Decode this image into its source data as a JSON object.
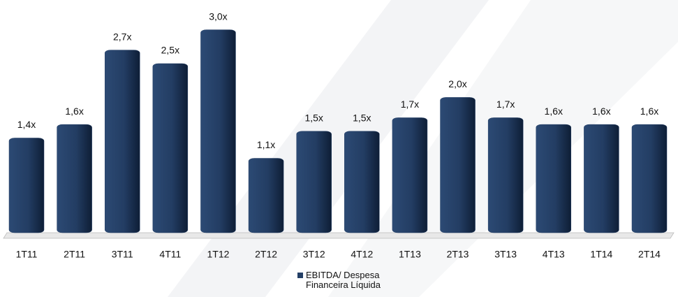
{
  "chart_data": {
    "type": "bar",
    "categories": [
      "1T11",
      "2T11",
      "3T11",
      "4T11",
      "1T12",
      "2T12",
      "3T12",
      "4T12",
      "1T13",
      "2T13",
      "3T13",
      "4T13",
      "1T14",
      "2T14"
    ],
    "series": [
      {
        "name": "EBITDA/ Despesa Financeira Líquida",
        "color": "#243f66",
        "values": [
          1.4,
          1.6,
          2.7,
          2.5,
          3.0,
          1.1,
          1.5,
          1.5,
          1.7,
          2.0,
          1.7,
          1.6,
          1.6,
          1.6
        ],
        "value_labels": [
          "1,4x",
          "1,6x",
          "2,7x",
          "2,5x",
          "3,0x",
          "1,1x",
          "1,5x",
          "1,5x",
          "1,7x",
          "2,0x",
          "1,7x",
          "1,6x",
          "1,6x",
          "1,6x"
        ]
      }
    ],
    "ylim": [
      0,
      3.4
    ]
  }
}
